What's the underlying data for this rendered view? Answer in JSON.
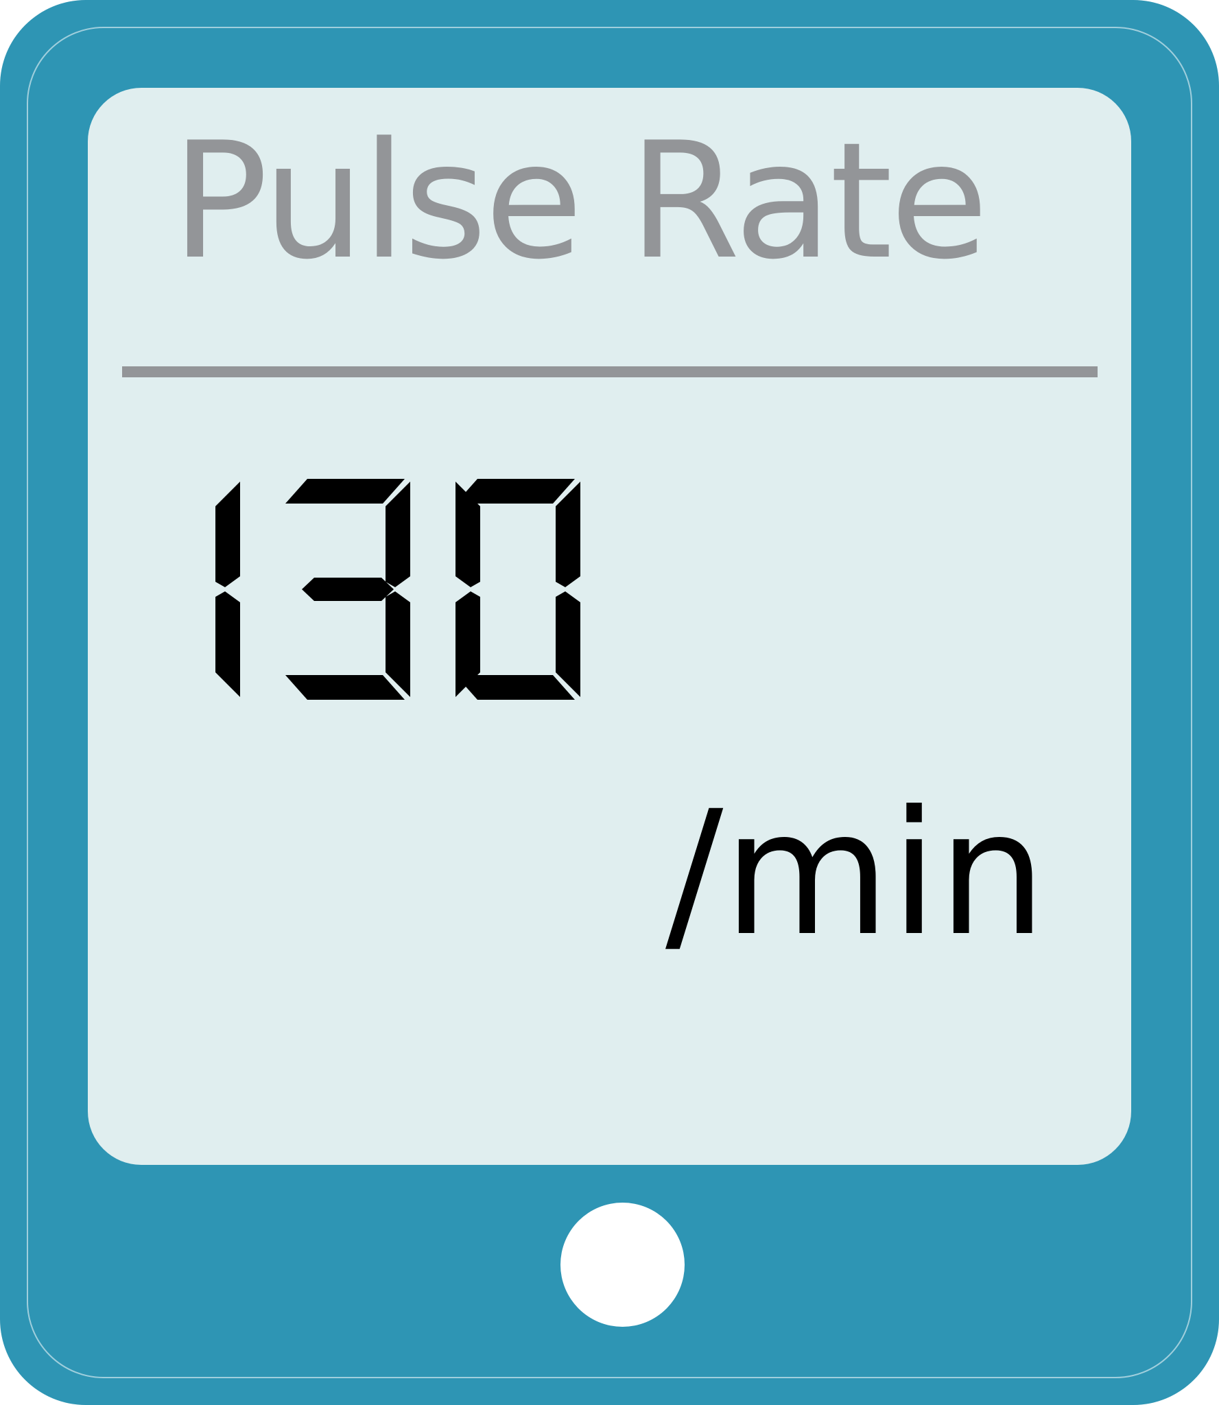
{
  "device": {
    "title": "Pulse Rate",
    "reading": {
      "value": "130",
      "unit": "/min"
    },
    "colors": {
      "body": "#2e95b4",
      "screen": "#e0eeef",
      "title_text": "#939598",
      "digits": "#000000",
      "home_button": "#ffffff"
    },
    "home_button_icon": "circle-button"
  }
}
